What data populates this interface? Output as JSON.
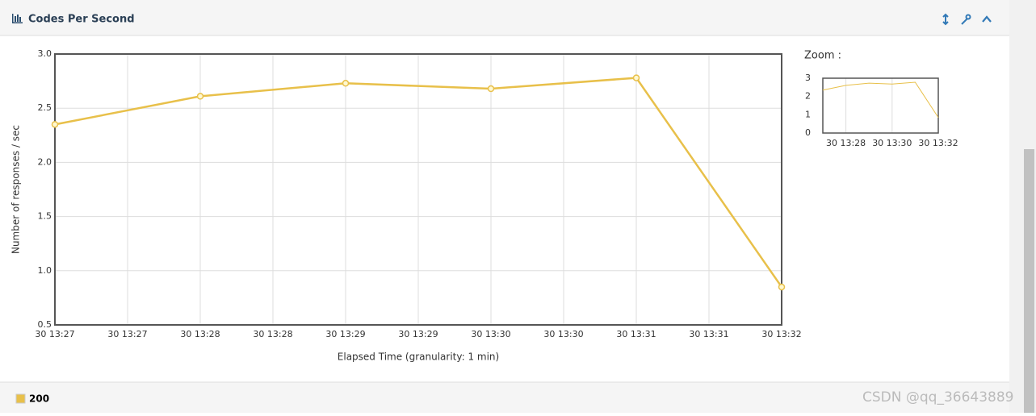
{
  "panel": {
    "title": "Codes Per Second"
  },
  "chart_data": [
    {
      "type": "line",
      "y_label": "Number of responses / sec",
      "x_label": "Elapsed Time (granularity: 1 min)",
      "x": [
        "30 13:27",
        "30 13:28",
        "30 13:29",
        "30 13:30",
        "30 13:31",
        "30 13:32"
      ],
      "xtick_labels": [
        "30 13:27",
        "30 13:27",
        "30 13:28",
        "30 13:28",
        "30 13:29",
        "30 13:29",
        "30 13:30",
        "30 13:30",
        "30 13:31",
        "30 13:31",
        "30 13:32"
      ],
      "series": [
        {
          "name": "200",
          "color": "#e8c04a",
          "values": [
            2.35,
            2.61,
            2.73,
            2.68,
            2.78,
            0.85
          ]
        }
      ],
      "ylim": [
        0.5,
        3.0
      ],
      "yticks": [
        {
          "value": 3,
          "label": "3.0"
        },
        2.5,
        {
          "value": 2,
          "label": "2.0"
        },
        1.5,
        {
          "value": 1,
          "label": "1.0"
        },
        0.5
      ],
      "grid": true
    },
    {
      "type": "line",
      "title": "Zoom :",
      "x": [
        "30 13:27",
        "30 13:28",
        "30 13:29",
        "30 13:30",
        "30 13:31",
        "30 13:32"
      ],
      "xtick_labels": [
        "30 13:28",
        "30 13:30",
        "30 13:32"
      ],
      "series": [
        {
          "color": "#e8c04a",
          "values": [
            2.35,
            2.61,
            2.73,
            2.68,
            2.78,
            0.85
          ]
        }
      ],
      "ylim": [
        0,
        3
      ],
      "yticks": [
        3,
        2,
        1,
        0
      ],
      "grid": true
    }
  ],
  "watermark": "CSDN @qq_36643889"
}
